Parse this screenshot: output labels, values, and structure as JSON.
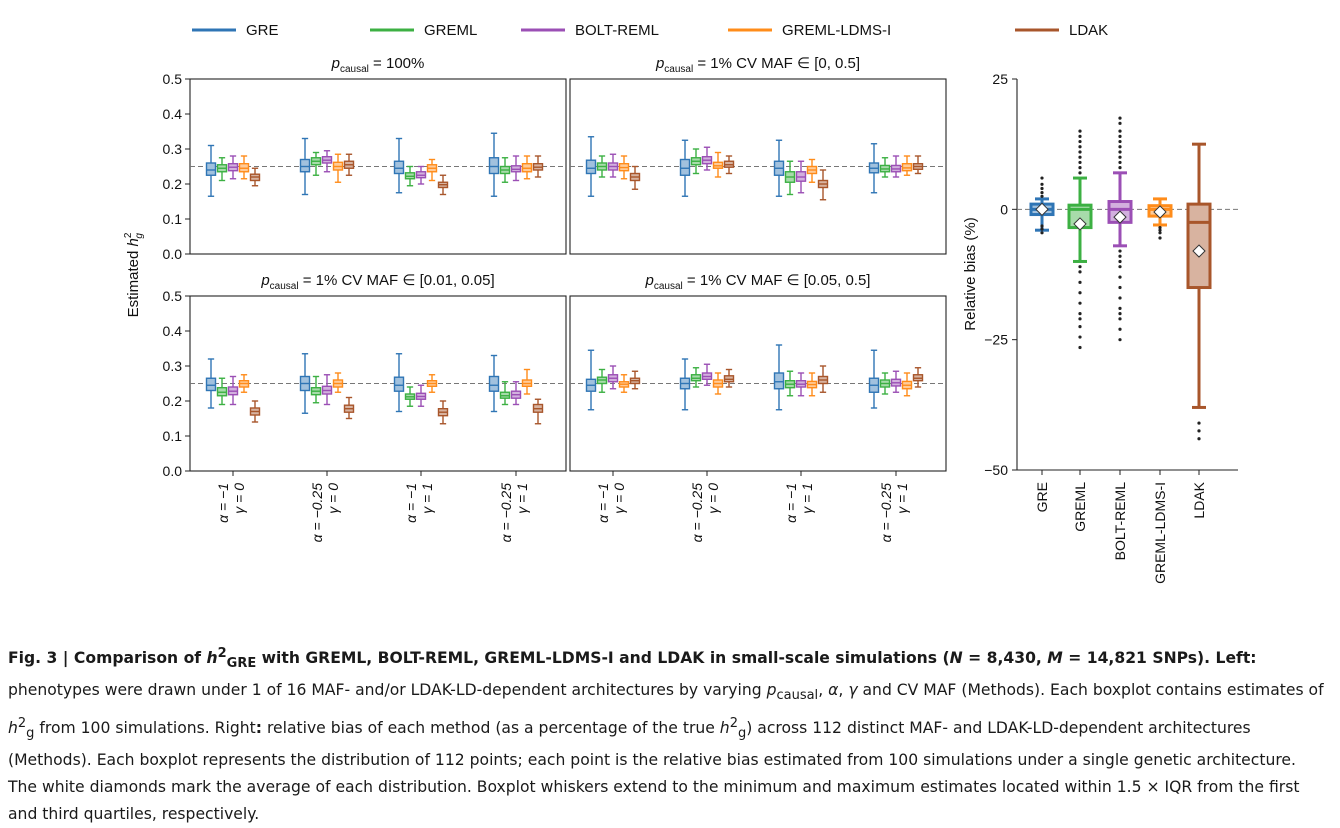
{
  "legend": [
    {
      "name": "GRE",
      "color": "#2f75b5"
    },
    {
      "name": "GREML",
      "color": "#3cb043"
    },
    {
      "name": "BOLT-REML",
      "color": "#9b4fb5"
    },
    {
      "name": "GREML-LDMS-I",
      "color": "#ff8c1a"
    },
    {
      "name": "LDAK",
      "color": "#a8562b"
    }
  ],
  "chart_data": [
    {
      "type": "box",
      "panel": "top-left",
      "title_pre": "p",
      "title_sub": "causal",
      "title_post": " = 100%",
      "ylabel_pre": "Estimated ",
      "ylabel_var": "h",
      "ylabel_sup": "2",
      "ylabel_sub": "g",
      "ylim": [
        0,
        0.5
      ],
      "yticks": [
        "0.0",
        "0.1",
        "0.2",
        "0.3",
        "0.4",
        "0.5"
      ],
      "reference_line": 0.25,
      "groups": [
        {
          "alpha": "α = −1",
          "gamma": "γ = 0",
          "boxes": [
            [
              0.165,
              0.225,
              0.24,
              0.26,
              0.31
            ],
            [
              0.21,
              0.235,
              0.245,
              0.255,
              0.275
            ],
            [
              0.215,
              0.238,
              0.248,
              0.258,
              0.28
            ],
            [
              0.215,
              0.235,
              0.245,
              0.258,
              0.28
            ],
            [
              0.195,
              0.21,
              0.22,
              0.228,
              0.245
            ]
          ]
        },
        {
          "alpha": "α = −0.25",
          "gamma": "γ = 0",
          "boxes": [
            [
              0.17,
              0.235,
              0.25,
              0.27,
              0.33
            ],
            [
              0.225,
              0.255,
              0.265,
              0.275,
              0.29
            ],
            [
              0.235,
              0.26,
              0.268,
              0.278,
              0.295
            ],
            [
              0.205,
              0.24,
              0.25,
              0.262,
              0.285
            ],
            [
              0.225,
              0.245,
              0.255,
              0.265,
              0.285
            ]
          ]
        },
        {
          "alpha": "α = −1",
          "gamma": "γ = 1",
          "boxes": [
            [
              0.175,
              0.23,
              0.245,
              0.265,
              0.33
            ],
            [
              0.195,
              0.215,
              0.222,
              0.232,
              0.25
            ],
            [
              0.2,
              0.218,
              0.225,
              0.235,
              0.25
            ],
            [
              0.21,
              0.235,
              0.245,
              0.255,
              0.27
            ],
            [
              0.17,
              0.19,
              0.198,
              0.205,
              0.225
            ]
          ]
        },
        {
          "alpha": "α = −0.25",
          "gamma": "γ = 1",
          "boxes": [
            [
              0.165,
              0.23,
              0.25,
              0.275,
              0.345
            ],
            [
              0.205,
              0.23,
              0.24,
              0.25,
              0.275
            ],
            [
              0.21,
              0.235,
              0.242,
              0.252,
              0.28
            ],
            [
              0.215,
              0.235,
              0.245,
              0.258,
              0.28
            ],
            [
              0.22,
              0.24,
              0.248,
              0.258,
              0.28
            ]
          ]
        }
      ]
    },
    {
      "type": "box",
      "panel": "top-right",
      "title_pre": "p",
      "title_sub": "causal",
      "title_post": " = 1% CV MAF ∈ [0, 0.5]",
      "ylim": [
        0,
        0.5
      ],
      "reference_line": 0.25,
      "groups": [
        {
          "alpha": "α = −1",
          "gamma": "γ = 0",
          "boxes": [
            [
              0.165,
              0.23,
              0.245,
              0.268,
              0.335
            ],
            [
              0.22,
              0.24,
              0.25,
              0.26,
              0.28
            ],
            [
              0.22,
              0.24,
              0.25,
              0.26,
              0.285
            ],
            [
              0.215,
              0.238,
              0.247,
              0.258,
              0.28
            ],
            [
              0.185,
              0.21,
              0.22,
              0.23,
              0.25
            ]
          ]
        },
        {
          "alpha": "α = −0.25",
          "gamma": "γ = 0",
          "boxes": [
            [
              0.165,
              0.225,
              0.245,
              0.27,
              0.325
            ],
            [
              0.23,
              0.255,
              0.265,
              0.275,
              0.3
            ],
            [
              0.24,
              0.258,
              0.268,
              0.278,
              0.305
            ],
            [
              0.22,
              0.245,
              0.252,
              0.262,
              0.29
            ],
            [
              0.23,
              0.248,
              0.255,
              0.265,
              0.28
            ]
          ]
        },
        {
          "alpha": "α = −1",
          "gamma": "γ = 1",
          "boxes": [
            [
              0.165,
              0.225,
              0.245,
              0.265,
              0.325
            ],
            [
              0.17,
              0.205,
              0.22,
              0.235,
              0.265
            ],
            [
              0.175,
              0.208,
              0.22,
              0.235,
              0.265
            ],
            [
              0.205,
              0.23,
              0.24,
              0.25,
              0.27
            ],
            [
              0.155,
              0.19,
              0.2,
              0.21,
              0.24
            ]
          ]
        },
        {
          "alpha": "α = −0.25",
          "gamma": "γ = 1",
          "boxes": [
            [
              0.175,
              0.232,
              0.245,
              0.26,
              0.315
            ],
            [
              0.22,
              0.235,
              0.243,
              0.253,
              0.275
            ],
            [
              0.22,
              0.235,
              0.243,
              0.253,
              0.28
            ],
            [
              0.225,
              0.238,
              0.246,
              0.258,
              0.28
            ],
            [
              0.23,
              0.242,
              0.25,
              0.258,
              0.28
            ]
          ]
        }
      ]
    },
    {
      "type": "box",
      "panel": "bottom-left",
      "title_pre": "p",
      "title_sub": "causal",
      "title_post": " = 1% CV MAF ∈ [0.01, 0.05]",
      "ylim": [
        0,
        0.5
      ],
      "yticks": [
        "0.0",
        "0.1",
        "0.2",
        "0.3",
        "0.4",
        "0.5"
      ],
      "reference_line": 0.25,
      "groups": [
        {
          "alpha": "α = −1",
          "gamma": "γ = 0",
          "boxes": [
            [
              0.18,
              0.23,
              0.245,
              0.265,
              0.32
            ],
            [
              0.19,
              0.215,
              0.225,
              0.238,
              0.265
            ],
            [
              0.19,
              0.218,
              0.228,
              0.24,
              0.27
            ],
            [
              0.225,
              0.24,
              0.25,
              0.258,
              0.275
            ],
            [
              0.14,
              0.16,
              0.17,
              0.18,
              0.2
            ]
          ]
        },
        {
          "alpha": "α = −0.25",
          "gamma": "γ = 0",
          "boxes": [
            [
              0.165,
              0.23,
              0.25,
              0.27,
              0.335
            ],
            [
              0.195,
              0.218,
              0.228,
              0.238,
              0.27
            ],
            [
              0.19,
              0.22,
              0.23,
              0.242,
              0.275
            ],
            [
              0.225,
              0.24,
              0.25,
              0.26,
              0.28
            ],
            [
              0.15,
              0.168,
              0.178,
              0.188,
              0.21
            ]
          ]
        },
        {
          "alpha": "α = −1",
          "gamma": "γ = 1",
          "boxes": [
            [
              0.17,
              0.228,
              0.245,
              0.268,
              0.335
            ],
            [
              0.185,
              0.205,
              0.212,
              0.22,
              0.24
            ],
            [
              0.185,
              0.205,
              0.213,
              0.222,
              0.245
            ],
            [
              0.225,
              0.242,
              0.25,
              0.258,
              0.275
            ],
            [
              0.135,
              0.158,
              0.168,
              0.178,
              0.2
            ]
          ]
        },
        {
          "alpha": "α = −0.25",
          "gamma": "γ = 1",
          "boxes": [
            [
              0.17,
              0.228,
              0.245,
              0.27,
              0.33
            ],
            [
              0.19,
              0.208,
              0.215,
              0.225,
              0.255
            ],
            [
              0.19,
              0.208,
              0.218,
              0.228,
              0.255
            ],
            [
              0.22,
              0.242,
              0.25,
              0.26,
              0.29
            ],
            [
              0.135,
              0.168,
              0.178,
              0.19,
              0.205
            ]
          ]
        }
      ]
    },
    {
      "type": "box",
      "panel": "bottom-right",
      "title_pre": "p",
      "title_sub": "causal",
      "title_post": " = 1% CV MAF ∈ [0.05, 0.5]",
      "ylim": [
        0,
        0.5
      ],
      "reference_line": 0.25,
      "groups": [
        {
          "alpha": "α = −1",
          "gamma": "γ = 0",
          "boxes": [
            [
              0.175,
              0.228,
              0.245,
              0.262,
              0.345
            ],
            [
              0.225,
              0.25,
              0.26,
              0.268,
              0.29
            ],
            [
              0.235,
              0.255,
              0.265,
              0.275,
              0.3
            ],
            [
              0.225,
              0.24,
              0.248,
              0.255,
              0.275
            ],
            [
              0.235,
              0.25,
              0.258,
              0.265,
              0.285
            ]
          ]
        },
        {
          "alpha": "α = −0.25",
          "gamma": "γ = 0",
          "boxes": [
            [
              0.175,
              0.235,
              0.25,
              0.265,
              0.32
            ],
            [
              0.24,
              0.258,
              0.265,
              0.275,
              0.295
            ],
            [
              0.245,
              0.262,
              0.27,
              0.28,
              0.305
            ],
            [
              0.22,
              0.24,
              0.25,
              0.26,
              0.28
            ],
            [
              0.24,
              0.255,
              0.262,
              0.272,
              0.29
            ]
          ]
        },
        {
          "alpha": "α = −1",
          "gamma": "γ = 1",
          "boxes": [
            [
              0.175,
              0.235,
              0.255,
              0.28,
              0.36
            ],
            [
              0.215,
              0.238,
              0.248,
              0.258,
              0.285
            ],
            [
              0.215,
              0.24,
              0.248,
              0.258,
              0.28
            ],
            [
              0.215,
              0.238,
              0.247,
              0.256,
              0.28
            ],
            [
              0.225,
              0.25,
              0.26,
              0.27,
              0.3
            ]
          ]
        },
        {
          "alpha": "α = −0.25",
          "gamma": "γ = 1",
          "boxes": [
            [
              0.18,
              0.225,
              0.245,
              0.265,
              0.345
            ],
            [
              0.22,
              0.24,
              0.25,
              0.26,
              0.28
            ],
            [
              0.225,
              0.243,
              0.252,
              0.262,
              0.285
            ],
            [
              0.215,
              0.235,
              0.245,
              0.256,
              0.28
            ],
            [
              0.24,
              0.258,
              0.265,
              0.275,
              0.295
            ]
          ]
        }
      ]
    },
    {
      "type": "box",
      "panel": "right",
      "ylabel": "Relative bias (%)",
      "ylim": [
        -50,
        25
      ],
      "yticks": [
        "25",
        "0",
        "−25",
        "−50"
      ],
      "reference_line": 0,
      "categories": [
        "GRE",
        "GREML",
        "BOLT-REML",
        "GREML-LDMS-I",
        "LDAK"
      ],
      "boxes": [
        {
          "whisker_low": -4,
          "q1": -1,
          "median": 0,
          "q3": 1,
          "whisker_high": 2,
          "mean": 0,
          "outliers": [
            -4.5,
            -3.8,
            -3.2,
            2.5,
            3.2,
            4,
            4.8,
            6
          ]
        },
        {
          "whisker_low": -10,
          "q1": -3.5,
          "median": 0,
          "q3": 0.8,
          "whisker_high": 6,
          "mean": -2.8,
          "outliers": [
            -26.5,
            -24.5,
            -22.5,
            -21,
            -20,
            -18,
            -16,
            -14,
            -12,
            -11,
            7,
            8,
            9,
            10,
            11,
            12,
            13,
            14,
            15
          ]
        },
        {
          "whisker_low": -7,
          "q1": -2.5,
          "median": 0,
          "q3": 1.5,
          "whisker_high": 7,
          "mean": -1.5,
          "outliers": [
            -25,
            -23,
            -21,
            -20,
            -19,
            -17,
            -15,
            -13,
            -11,
            -10,
            -9,
            -8,
            8,
            9,
            10,
            11,
            12,
            13,
            14,
            15,
            16.5,
            17.5
          ]
        },
        {
          "whisker_low": -3,
          "q1": -1.3,
          "median": 0,
          "q3": 0.7,
          "whisker_high": 2,
          "mean": -0.5,
          "outliers": [
            -5.5,
            -4.5,
            -4,
            -3.5
          ]
        },
        {
          "whisker_low": -38,
          "q1": -15,
          "median": -2.5,
          "q3": 1,
          "whisker_high": 12.5,
          "mean": -8,
          "outliers": [
            -41,
            -42.5,
            -44
          ]
        }
      ]
    }
  ],
  "caption": {
    "fig_label": "Fig. 3 | Comparison of ",
    "h": "h",
    "h_sup": "2",
    "h_sub": "GRE",
    "title_rest": " with GREML, BOLT-REML, GREML-LDMS-I and LDAK in small-scale simulations (",
    "N_var": "N",
    "N_val": " = 8,430, ",
    "M_var": "M",
    "M_val": " = 14,821 SNPs).",
    "left_label": " Left:",
    "s1": " phenotypes were drawn under 1 of 16 MAF- and/or LDAK-LD-dependent architectures by varying ",
    "p": "p",
    "p_sub": "causal",
    "s2": ", ",
    "alpha": "α",
    "s3": ", ",
    "gamma": "γ",
    "s4": " and CV MAF (Methods). Each boxplot contains estimates of ",
    "h2": "h",
    "h2_sup": "2",
    "h2_sub": "g",
    "s5": " from 100 simulations. Right",
    "colon": ":",
    "s6": " relative bias of each method (as a percentage of the true ",
    "h3": "h",
    "h3_sup": "2",
    "h3_sub": "g",
    "s7": ") across 112 distinct MAF- and LDAK-LD-dependent architectures (Methods). Each boxplot represents the distribution of 112 points; each point is the relative bias estimated from 100 simulations under a single genetic architecture. The white diamonds mark the average of each distribution. Boxplot whiskers extend to the minimum and maximum estimates located within 1.5 × IQR from the first and third quartiles, respectively."
  }
}
